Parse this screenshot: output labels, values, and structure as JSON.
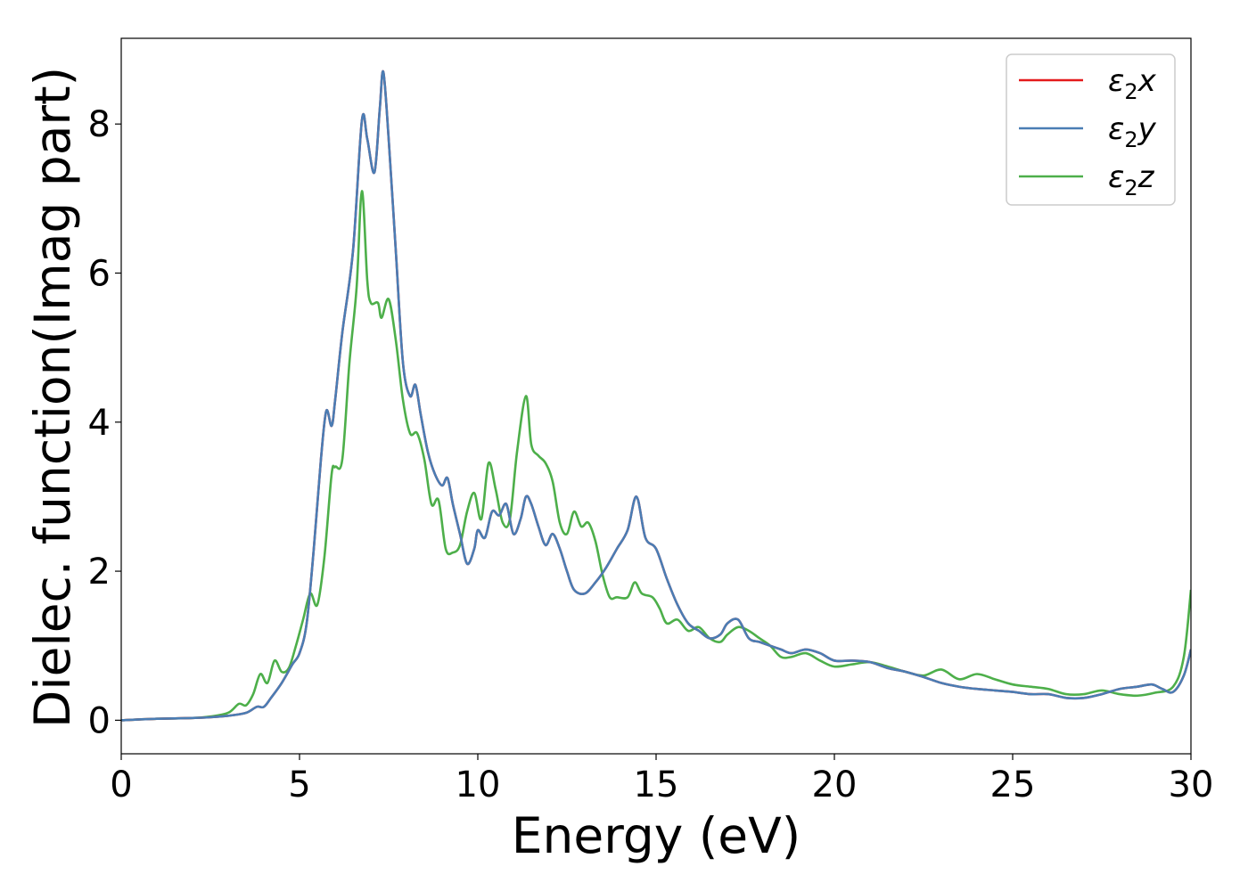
{
  "chart_data": {
    "type": "line",
    "xlabel": "Energy (eV)",
    "ylabel": "Dielec. function(Imag part)",
    "xlim": [
      0,
      30
    ],
    "ylim": [
      -0.45,
      9.15
    ],
    "xticks": [
      0,
      5,
      10,
      15,
      20,
      25,
      30
    ],
    "yticks": [
      0,
      2,
      4,
      6,
      8
    ],
    "grid": false,
    "legend_position": "top-right",
    "series": [
      {
        "name": "ε2x",
        "legend_base": "ε",
        "legend_sub": "2",
        "legend_suffix": "x",
        "color": "#e41a1c",
        "x": [
          0,
          1,
          2,
          2.5,
          3,
          3.5,
          3.8,
          4.0,
          4.2,
          4.5,
          4.8,
          5.0,
          5.2,
          5.4,
          5.6,
          5.75,
          5.9,
          6.0,
          6.2,
          6.5,
          6.75,
          6.9,
          7.1,
          7.25,
          7.35,
          7.5,
          7.7,
          7.9,
          8.1,
          8.25,
          8.4,
          8.6,
          8.8,
          9.0,
          9.15,
          9.3,
          9.5,
          9.7,
          9.9,
          10.0,
          10.2,
          10.4,
          10.6,
          10.8,
          11.0,
          11.2,
          11.35,
          11.5,
          11.7,
          11.9,
          12.1,
          12.3,
          12.5,
          12.7,
          13.0,
          13.3,
          13.6,
          13.9,
          14.2,
          14.45,
          14.7,
          15.0,
          15.3,
          15.6,
          15.9,
          16.2,
          16.5,
          16.8,
          17.0,
          17.3,
          17.6,
          17.9,
          18.2,
          18.5,
          18.8,
          19.2,
          19.6,
          20.0,
          20.5,
          21.0,
          21.5,
          22.0,
          22.5,
          23.0,
          23.5,
          24.0,
          24.5,
          25.0,
          25.5,
          26.0,
          26.5,
          27.0,
          27.5,
          28.0,
          28.5,
          28.9,
          29.2,
          29.5,
          29.8,
          30.0
        ],
        "y": [
          0.0,
          0.02,
          0.03,
          0.04,
          0.06,
          0.1,
          0.18,
          0.18,
          0.3,
          0.5,
          0.75,
          0.9,
          1.3,
          2.3,
          3.5,
          4.15,
          3.95,
          4.3,
          5.2,
          6.3,
          8.05,
          7.8,
          7.35,
          8.2,
          8.7,
          7.8,
          6.3,
          4.8,
          4.35,
          4.5,
          4.1,
          3.6,
          3.3,
          3.15,
          3.25,
          2.9,
          2.5,
          2.1,
          2.3,
          2.55,
          2.45,
          2.8,
          2.75,
          2.9,
          2.5,
          2.7,
          3.0,
          2.9,
          2.6,
          2.35,
          2.5,
          2.3,
          2.0,
          1.75,
          1.7,
          1.85,
          2.05,
          2.3,
          2.55,
          3.0,
          2.45,
          2.3,
          1.9,
          1.55,
          1.3,
          1.2,
          1.1,
          1.15,
          1.3,
          1.35,
          1.1,
          1.05,
          1.0,
          0.95,
          0.9,
          0.95,
          0.9,
          0.8,
          0.8,
          0.78,
          0.7,
          0.65,
          0.58,
          0.5,
          0.45,
          0.42,
          0.4,
          0.38,
          0.35,
          0.35,
          0.3,
          0.3,
          0.35,
          0.42,
          0.45,
          0.48,
          0.42,
          0.38,
          0.6,
          0.95
        ]
      },
      {
        "name": "ε2y",
        "legend_base": "ε",
        "legend_sub": "2",
        "legend_suffix": "y",
        "color": "#4a7db4",
        "x": [
          0,
          1,
          2,
          2.5,
          3,
          3.5,
          3.8,
          4.0,
          4.2,
          4.5,
          4.8,
          5.0,
          5.2,
          5.4,
          5.6,
          5.75,
          5.9,
          6.0,
          6.2,
          6.5,
          6.75,
          6.9,
          7.1,
          7.25,
          7.35,
          7.5,
          7.7,
          7.9,
          8.1,
          8.25,
          8.4,
          8.6,
          8.8,
          9.0,
          9.15,
          9.3,
          9.5,
          9.7,
          9.9,
          10.0,
          10.2,
          10.4,
          10.6,
          10.8,
          11.0,
          11.2,
          11.35,
          11.5,
          11.7,
          11.9,
          12.1,
          12.3,
          12.5,
          12.7,
          13.0,
          13.3,
          13.6,
          13.9,
          14.2,
          14.45,
          14.7,
          15.0,
          15.3,
          15.6,
          15.9,
          16.2,
          16.5,
          16.8,
          17.0,
          17.3,
          17.6,
          17.9,
          18.2,
          18.5,
          18.8,
          19.2,
          19.6,
          20.0,
          20.5,
          21.0,
          21.5,
          22.0,
          22.5,
          23.0,
          23.5,
          24.0,
          24.5,
          25.0,
          25.5,
          26.0,
          26.5,
          27.0,
          27.5,
          28.0,
          28.5,
          28.9,
          29.2,
          29.5,
          29.8,
          30.0
        ],
        "y": [
          0.0,
          0.02,
          0.03,
          0.04,
          0.06,
          0.1,
          0.18,
          0.18,
          0.3,
          0.5,
          0.75,
          0.9,
          1.3,
          2.3,
          3.5,
          4.15,
          3.95,
          4.3,
          5.2,
          6.3,
          8.05,
          7.8,
          7.35,
          8.2,
          8.7,
          7.8,
          6.3,
          4.8,
          4.35,
          4.5,
          4.1,
          3.6,
          3.3,
          3.15,
          3.25,
          2.9,
          2.5,
          2.1,
          2.3,
          2.55,
          2.45,
          2.8,
          2.75,
          2.9,
          2.5,
          2.7,
          3.0,
          2.9,
          2.6,
          2.35,
          2.5,
          2.3,
          2.0,
          1.75,
          1.7,
          1.85,
          2.05,
          2.3,
          2.55,
          3.0,
          2.45,
          2.3,
          1.9,
          1.55,
          1.3,
          1.2,
          1.1,
          1.15,
          1.3,
          1.35,
          1.1,
          1.05,
          1.0,
          0.95,
          0.9,
          0.95,
          0.9,
          0.8,
          0.8,
          0.78,
          0.7,
          0.65,
          0.58,
          0.5,
          0.45,
          0.42,
          0.4,
          0.38,
          0.35,
          0.35,
          0.3,
          0.3,
          0.35,
          0.42,
          0.45,
          0.48,
          0.42,
          0.38,
          0.6,
          0.95
        ]
      },
      {
        "name": "ε2z",
        "legend_base": "ε",
        "legend_sub": "2",
        "legend_suffix": "z",
        "color": "#4daf4a",
        "x": [
          0,
          1,
          2,
          2.5,
          3,
          3.3,
          3.5,
          3.7,
          3.9,
          4.1,
          4.3,
          4.5,
          4.7,
          4.9,
          5.1,
          5.3,
          5.5,
          5.7,
          5.9,
          6.0,
          6.2,
          6.4,
          6.6,
          6.75,
          6.9,
          7.0,
          7.2,
          7.3,
          7.5,
          7.7,
          7.9,
          8.1,
          8.3,
          8.5,
          8.7,
          8.9,
          9.1,
          9.3,
          9.5,
          9.7,
          9.9,
          10.1,
          10.3,
          10.5,
          10.7,
          10.9,
          11.1,
          11.35,
          11.5,
          11.7,
          11.9,
          12.1,
          12.3,
          12.5,
          12.7,
          12.9,
          13.1,
          13.3,
          13.5,
          13.7,
          13.9,
          14.2,
          14.4,
          14.6,
          14.9,
          15.1,
          15.3,
          15.6,
          15.9,
          16.2,
          16.5,
          16.8,
          17.0,
          17.3,
          17.6,
          17.9,
          18.2,
          18.5,
          18.8,
          19.2,
          19.6,
          20.0,
          20.5,
          21.0,
          21.5,
          22.0,
          22.5,
          23.0,
          23.5,
          24.0,
          24.5,
          25.0,
          25.5,
          26.0,
          26.5,
          27.0,
          27.5,
          28.0,
          28.5,
          29.0,
          29.5,
          29.8,
          30.0
        ],
        "y": [
          0.0,
          0.02,
          0.03,
          0.05,
          0.1,
          0.22,
          0.2,
          0.35,
          0.62,
          0.5,
          0.8,
          0.65,
          0.7,
          1.0,
          1.35,
          1.7,
          1.55,
          2.2,
          3.3,
          3.4,
          3.5,
          4.8,
          5.8,
          7.1,
          5.9,
          5.6,
          5.6,
          5.4,
          5.65,
          5.1,
          4.3,
          3.85,
          3.85,
          3.5,
          2.9,
          2.95,
          2.3,
          2.25,
          2.35,
          2.8,
          3.05,
          2.7,
          3.45,
          3.1,
          2.65,
          2.7,
          3.6,
          4.35,
          3.7,
          3.55,
          3.45,
          3.2,
          2.65,
          2.5,
          2.8,
          2.6,
          2.65,
          2.4,
          1.95,
          1.65,
          1.65,
          1.65,
          1.85,
          1.7,
          1.65,
          1.5,
          1.3,
          1.35,
          1.2,
          1.25,
          1.1,
          1.05,
          1.15,
          1.25,
          1.2,
          1.1,
          1.0,
          0.85,
          0.85,
          0.9,
          0.8,
          0.72,
          0.75,
          0.78,
          0.72,
          0.65,
          0.6,
          0.68,
          0.55,
          0.62,
          0.55,
          0.48,
          0.45,
          0.42,
          0.35,
          0.35,
          0.4,
          0.35,
          0.33,
          0.37,
          0.45,
          0.85,
          1.75
        ]
      }
    ]
  }
}
